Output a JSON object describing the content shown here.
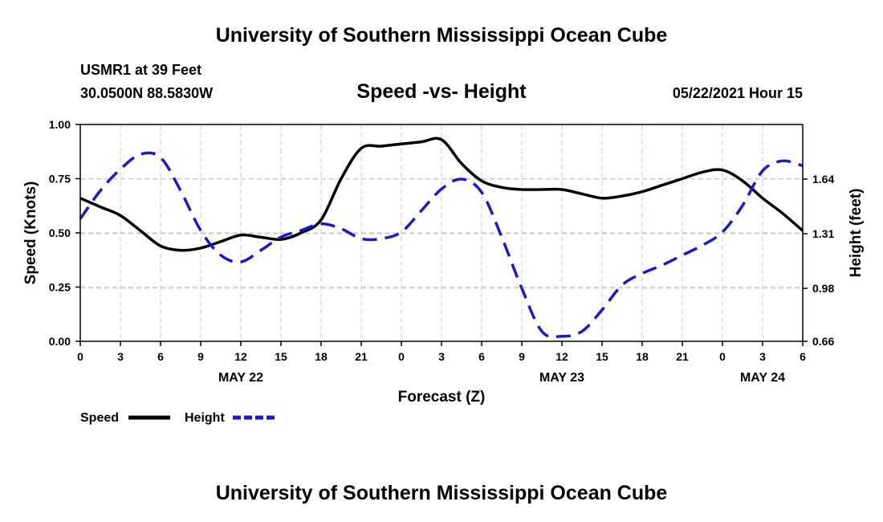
{
  "header": {
    "top_title": "University of Southern Mississippi Ocean Cube",
    "station": "USMR1 at 39 Feet",
    "coords": "30.0500N  88.5830W",
    "datetime": "05/22/2021 Hour 15"
  },
  "footer": {
    "bottom_title": "University of Southern Mississippi Ocean Cube"
  },
  "chart_data": {
    "type": "line",
    "title": "Speed -vs- Height",
    "xlabel": "Forecast (Z)",
    "ylabel_left": "Speed (Knots)",
    "ylabel_right": "Height (feet)",
    "x_tick_labels": [
      "0",
      "3",
      "6",
      "9",
      "12",
      "15",
      "18",
      "21",
      "0",
      "3",
      "6",
      "9",
      "12",
      "15",
      "18",
      "21",
      "0",
      "3",
      "6"
    ],
    "x_range_hours": [
      0,
      54
    ],
    "date_labels": [
      {
        "label": "MAY 22",
        "hour": 12
      },
      {
        "label": "MAY 23",
        "hour": 36
      },
      {
        "label": "MAY 24",
        "hour": 51
      }
    ],
    "y_left": {
      "ylim": [
        0,
        1.0
      ],
      "ticks": [
        "0.00",
        "0.25",
        "0.50",
        "0.75",
        "1.00"
      ]
    },
    "y_right": {
      "ylim": [
        0.66,
        1.97
      ],
      "tick_values": [
        0.66,
        0.98,
        1.31,
        1.64
      ],
      "ticks": [
        "0.66",
        "0.98",
        "1.31",
        "1.64"
      ]
    },
    "grid": true,
    "legend": "bottom-left",
    "colors": {
      "speed": "#000000",
      "height": "#1a1acc",
      "grid": "#c8c8c8"
    },
    "series": [
      {
        "name": "Speed",
        "axis": "left",
        "style": "solid",
        "x": [
          0,
          1.5,
          3,
          4.5,
          6,
          7.5,
          9,
          10.5,
          12,
          13.5,
          15,
          16.5,
          18,
          19.5,
          21,
          22.5,
          24,
          25.5,
          27,
          28.5,
          30,
          31.5,
          33,
          34.5,
          36,
          37.5,
          39,
          40.5,
          42,
          43.5,
          45,
          46.5,
          48,
          49.5,
          51,
          52.5,
          54
        ],
        "values": [
          0.66,
          0.62,
          0.58,
          0.51,
          0.44,
          0.42,
          0.43,
          0.46,
          0.49,
          0.48,
          0.47,
          0.5,
          0.56,
          0.75,
          0.89,
          0.9,
          0.91,
          0.92,
          0.93,
          0.82,
          0.74,
          0.71,
          0.7,
          0.7,
          0.7,
          0.68,
          0.66,
          0.67,
          0.69,
          0.72,
          0.75,
          0.78,
          0.79,
          0.74,
          0.66,
          0.59,
          0.51
        ]
      },
      {
        "name": "Height",
        "axis": "right",
        "style": "dashed",
        "x": [
          0,
          1.5,
          3,
          4.5,
          6,
          7.5,
          9,
          10.5,
          12,
          13.5,
          15,
          16.5,
          18,
          19.5,
          21,
          22.5,
          24,
          25.5,
          27,
          28.5,
          30,
          31.5,
          33,
          34.5,
          36,
          37.5,
          39,
          40.5,
          42,
          43.5,
          45,
          46.5,
          48,
          49.5,
          51,
          52.5,
          54
        ],
        "values": [
          1.4,
          1.57,
          1.7,
          1.79,
          1.77,
          1.57,
          1.33,
          1.18,
          1.14,
          1.21,
          1.29,
          1.33,
          1.37,
          1.34,
          1.28,
          1.28,
          1.32,
          1.45,
          1.58,
          1.64,
          1.56,
          1.29,
          0.98,
          0.72,
          0.69,
          0.72,
          0.85,
          1.0,
          1.07,
          1.12,
          1.18,
          1.24,
          1.32,
          1.48,
          1.69,
          1.75,
          1.72
        ]
      }
    ]
  }
}
